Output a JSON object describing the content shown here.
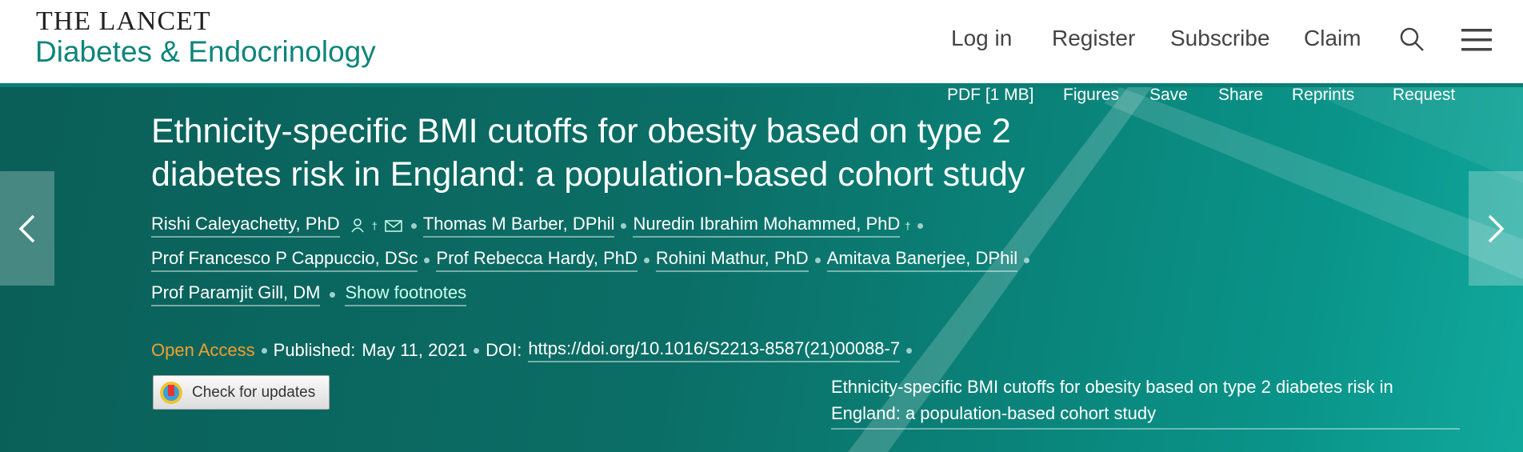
{
  "header": {
    "journal_top": "THE LANCET",
    "journal_sub": "Diabetes & Endocrinology",
    "nav": [
      "Log in",
      "Register",
      "Subscribe",
      "Claim"
    ]
  },
  "toolbar": [
    "PDF [1 MB]",
    "Figures",
    "Save",
    "Share",
    "Reprints",
    "Request"
  ],
  "article": {
    "title": "Ethnicity-specific BMI cutoffs for obesity based on type 2 diabetes risk in England: a population-based cohort study",
    "authors": [
      "Rishi Caleyachetty, PhD",
      "Thomas M Barber, DPhil",
      "Nuredin Ibrahim Mohammed, PhD",
      "Prof Francesco P Cappuccio, DSc",
      "Prof Rebecca Hardy, PhD",
      "Rohini Mathur, PhD",
      "Amitava Banerjee, DPhil",
      "Prof Paramjit Gill, DM"
    ],
    "footnote_mark": "†",
    "show_footnotes": "Show footnotes",
    "access": "Open Access",
    "published_label": "Published:",
    "published_date": "May 11, 2021",
    "doi_label": "DOI:",
    "doi": "https://doi.org/10.1016/S2213-8587(21)00088-7",
    "check_updates": "Check for updates",
    "caption": "Ethnicity-specific BMI cutoffs for obesity based on type 2 diabetes risk in England: a population-based cohort study"
  }
}
